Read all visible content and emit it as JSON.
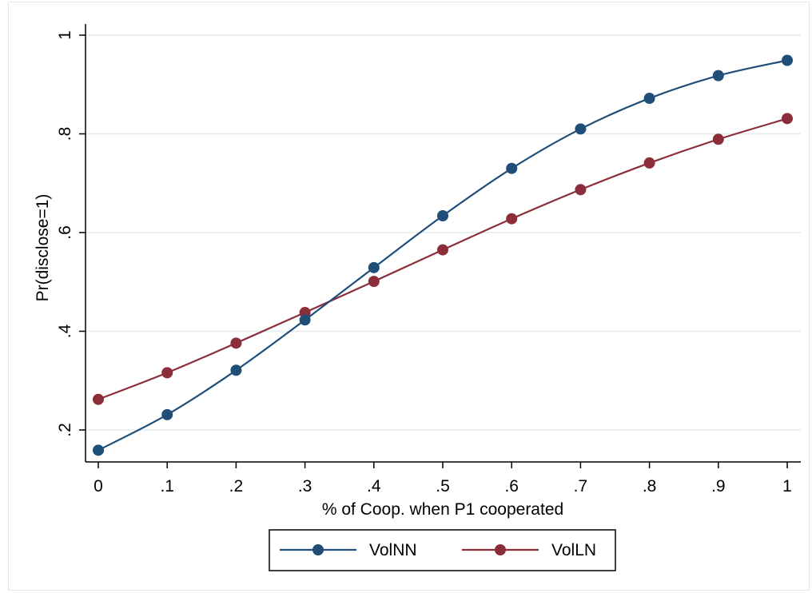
{
  "chart_data": {
    "type": "line",
    "title": "",
    "xlabel": "% of Coop.  when P1 cooperated",
    "ylabel": "Pr(disclose=1)",
    "x": [
      0,
      0.1,
      0.2,
      0.3,
      0.4,
      0.5,
      0.6,
      0.7,
      0.8,
      0.9,
      1
    ],
    "x_tick_labels": [
      "0",
      ".1",
      ".2",
      ".3",
      ".4",
      ".5",
      ".6",
      ".7",
      ".8",
      ".9",
      "1"
    ],
    "y_ticks": [
      0.2,
      0.4,
      0.6,
      0.8,
      1
    ],
    "y_tick_labels": [
      ".2",
      ".4",
      ".6",
      ".8",
      "1"
    ],
    "xlim": [
      0,
      1
    ],
    "ylim": [
      0.16,
      1.0
    ],
    "grid": true,
    "legend_position": "bottom-center",
    "series": [
      {
        "name": "VolNN",
        "color": "#1f4e79",
        "values": [
          0.159,
          0.231,
          0.321,
          0.423,
          0.529,
          0.634,
          0.73,
          0.81,
          0.872,
          0.918,
          0.949
        ]
      },
      {
        "name": "VolLN",
        "color": "#8b2e3a",
        "values": [
          0.262,
          0.316,
          0.376,
          0.438,
          0.501,
          0.565,
          0.628,
          0.687,
          0.741,
          0.789,
          0.831
        ]
      }
    ]
  }
}
